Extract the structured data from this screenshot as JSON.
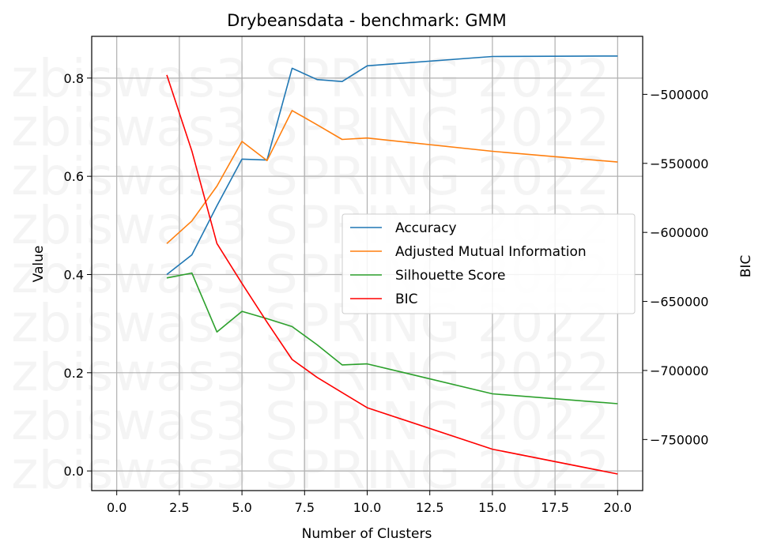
{
  "chart_data": {
    "type": "line",
    "title": "Drybeansdata - benchmark: GMM",
    "xlabel": "Number of Clusters",
    "ylabel": "Value",
    "y2label": "BIC",
    "xlim": [
      -1,
      21
    ],
    "ylim": [
      -0.04,
      0.885
    ],
    "y2lim": [
      -787000,
      -458000
    ],
    "xticks": [
      "0.0",
      "2.5",
      "5.0",
      "7.5",
      "10.0",
      "12.5",
      "15.0",
      "17.5",
      "20.0"
    ],
    "yticks": [
      "0.0",
      "0.2",
      "0.4",
      "0.6",
      "0.8"
    ],
    "y2ticks": [
      "−750000",
      "−700000",
      "−650000",
      "−600000",
      "−550000",
      "−500000"
    ],
    "grid": true,
    "legend_position": "center-right",
    "watermark": "zbiswas3 SPRING 2022",
    "series": [
      {
        "name": "Accuracy",
        "axis": "left",
        "color": "#1f77b4",
        "x": [
          2,
          3,
          4,
          5,
          6,
          7,
          8,
          9,
          10,
          15,
          20
        ],
        "y": [
          0.4,
          0.44,
          0.54,
          0.635,
          0.633,
          0.82,
          0.797,
          0.793,
          0.825,
          0.844,
          0.845
        ]
      },
      {
        "name": "Adjusted Mutual Information",
        "axis": "left",
        "color": "#ff7f0e",
        "x": [
          2,
          3,
          4,
          5,
          6,
          7,
          8,
          9,
          10,
          15,
          20
        ],
        "y": [
          0.463,
          0.509,
          0.58,
          0.671,
          0.632,
          0.734,
          0.705,
          0.675,
          0.678,
          0.651,
          0.629
        ]
      },
      {
        "name": "Silhouette Score",
        "axis": "left",
        "color": "#2ca02c",
        "x": [
          2,
          3,
          4,
          5,
          6,
          7,
          8,
          9,
          10,
          15,
          20
        ],
        "y": [
          0.393,
          0.403,
          0.283,
          0.325,
          0.31,
          0.294,
          0.257,
          0.216,
          0.218,
          0.157,
          0.137
        ]
      },
      {
        "name": "BIC",
        "axis": "right",
        "color": "#ff0000",
        "x": [
          2,
          3,
          4,
          5,
          6,
          7,
          8,
          9,
          10,
          15,
          20
        ],
        "y": [
          -486000,
          -541000,
          -608000,
          -637000,
          -665000,
          -692000,
          -705000,
          -716000,
          -727000,
          -757000,
          -775000
        ]
      }
    ]
  }
}
